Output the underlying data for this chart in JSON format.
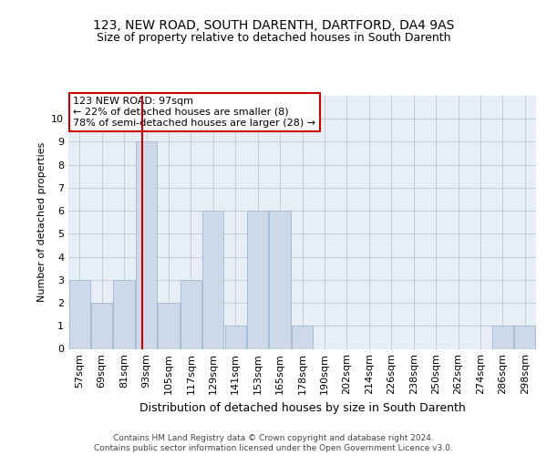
{
  "title1": "123, NEW ROAD, SOUTH DARENTH, DARTFORD, DA4 9AS",
  "title2": "Size of property relative to detached houses in South Darenth",
  "xlabel": "Distribution of detached houses by size in South Darenth",
  "ylabel": "Number of detached properties",
  "annotation_line1": "123 NEW ROAD: 97sqm",
  "annotation_line2": "← 22% of detached houses are smaller (8)",
  "annotation_line3": "78% of semi-detached houses are larger (28) →",
  "footnote1": "Contains HM Land Registry data © Crown copyright and database right 2024.",
  "footnote2": "Contains public sector information licensed under the Open Government Licence v3.0.",
  "bar_color": "#cdd8e8",
  "bar_edgecolor": "#a8bcd4",
  "plot_bg_color": "#e8eef5",
  "redline_bin_index": 3,
  "categories": [
    "57sqm",
    "69sqm",
    "81sqm",
    "93sqm",
    "105sqm",
    "117sqm",
    "129sqm",
    "141sqm",
    "153sqm",
    "165sqm",
    "178sqm",
    "190sqm",
    "202sqm",
    "214sqm",
    "226sqm",
    "238sqm",
    "250sqm",
    "262sqm",
    "274sqm",
    "286sqm",
    "298sqm"
  ],
  "values": [
    3,
    2,
    3,
    9,
    2,
    3,
    6,
    1,
    6,
    6,
    1,
    0,
    0,
    0,
    0,
    0,
    0,
    0,
    0,
    1,
    1
  ],
  "ylim": [
    0,
    11
  ],
  "yticks": [
    0,
    1,
    2,
    3,
    4,
    5,
    6,
    7,
    8,
    9,
    10
  ],
  "background_color": "#ffffff",
  "grid_color": "#c0ccd8",
  "title1_fontsize": 10,
  "title2_fontsize": 9,
  "xlabel_fontsize": 9,
  "ylabel_fontsize": 8,
  "tick_fontsize": 8,
  "annot_fontsize": 8,
  "footnote_fontsize": 6.5
}
